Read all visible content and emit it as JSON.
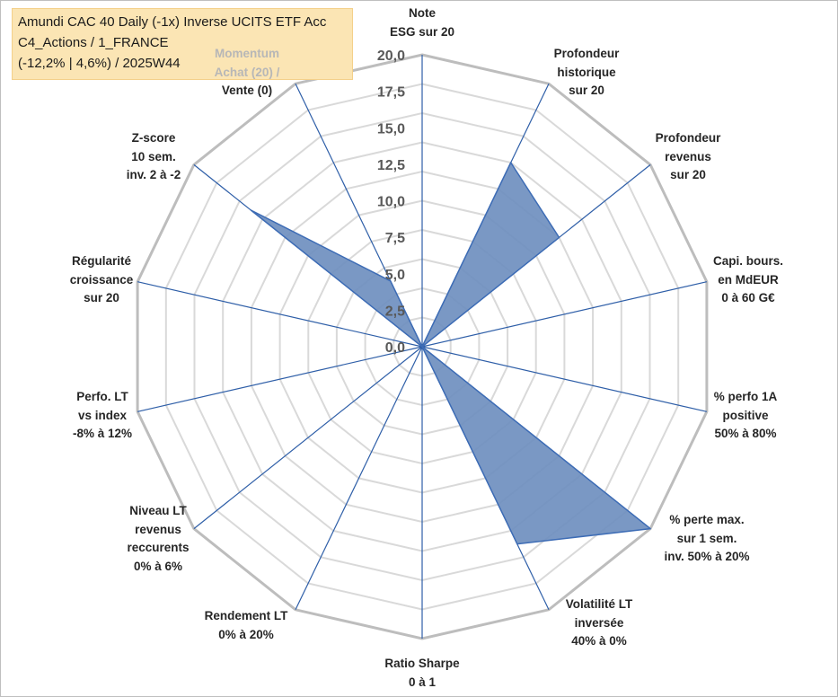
{
  "title_box": {
    "line1": "Amundi CAC 40 Daily (-1x) Inverse UCITS ETF Acc",
    "line2": "C4_Actions / 1_FRANCE",
    "line3": "(-12,2% | 4,6%) / 2025W44"
  },
  "chart_data": {
    "type": "radar",
    "title": "Amundi CAC 40 Daily (-1x) Inverse UCITS ETF Acc",
    "rlim": [
      0,
      20
    ],
    "r_ticks": [
      "0,0",
      "2,5",
      "5,0",
      "7,5",
      "10,0",
      "12,5",
      "15,0",
      "17,5",
      "20,0"
    ],
    "grid_rings": 10,
    "series": [
      {
        "name": "Amundi CAC 40 Daily (-1x) Inverse UCITS ETF Acc",
        "color": "#6f8fbf",
        "values": [
          0,
          14,
          12,
          0,
          0,
          20,
          15,
          0,
          0,
          0,
          0,
          0,
          15,
          5
        ]
      }
    ],
    "axes": [
      {
        "key": "esg",
        "lines": [
          "Note",
          "ESG sur 20"
        ]
      },
      {
        "key": "prof_hist",
        "lines": [
          "Profondeur",
          "historique",
          "sur 20"
        ]
      },
      {
        "key": "prof_rev",
        "lines": [
          "Profondeur",
          "revenus",
          "sur 20"
        ]
      },
      {
        "key": "capi",
        "lines": [
          "Capi. bours.",
          "en MdEUR",
          "0 à 60 G€"
        ]
      },
      {
        "key": "perf1a",
        "lines": [
          "% perfo 1A",
          "positive",
          "50% à 80%"
        ]
      },
      {
        "key": "perte",
        "lines": [
          "% perte max.",
          "sur 1 sem.",
          "inv. 50% à 20%"
        ]
      },
      {
        "key": "vol",
        "lines": [
          "Volatilité LT",
          "inversée",
          "40% à 0%"
        ]
      },
      {
        "key": "sharpe",
        "lines": [
          "Ratio Sharpe",
          "0 à 1"
        ]
      },
      {
        "key": "rendement",
        "lines": [
          "Rendement LT",
          "0% à 20%"
        ]
      },
      {
        "key": "niveau",
        "lines": [
          "Niveau LT",
          "revenus",
          "reccurents",
          "0% à 6%"
        ]
      },
      {
        "key": "perfo_lt",
        "lines": [
          "Perfo. LT",
          "vs index",
          "-8% à 12%"
        ]
      },
      {
        "key": "regularite",
        "lines": [
          "Régularité",
          "croissance",
          "sur 20"
        ]
      },
      {
        "key": "zscore",
        "lines": [
          "Z-score",
          "10 sem.",
          "inv. 2 à -2"
        ]
      },
      {
        "key": "momentum",
        "lines": [
          "Momentum",
          "Achat (20) /",
          "Vente (0)"
        ]
      }
    ]
  }
}
